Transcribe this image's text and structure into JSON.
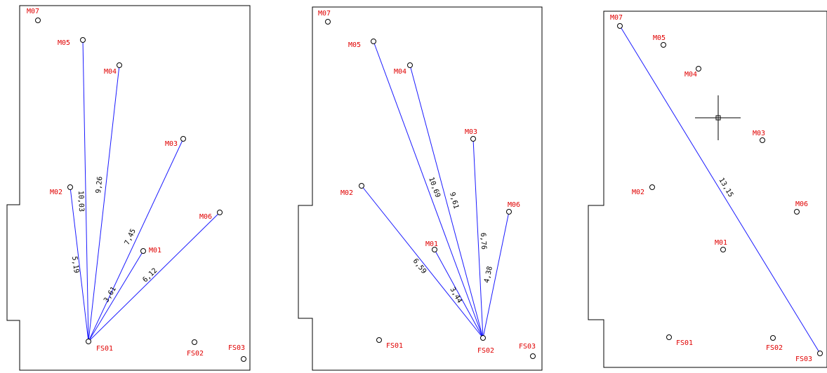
{
  "panels": [
    {
      "id": "panel-1",
      "points": [
        {
          "id": "p1-m07",
          "name": "M07"
        },
        {
          "id": "p1-m05",
          "name": "M05"
        },
        {
          "id": "p1-m04",
          "name": "M04"
        },
        {
          "id": "p1-m03",
          "name": "M03"
        },
        {
          "id": "p1-m02",
          "name": "M02"
        },
        {
          "id": "p1-m06",
          "name": "M06"
        },
        {
          "id": "p1-m01",
          "name": "M01"
        },
        {
          "id": "p1-fs01",
          "name": "FS01"
        },
        {
          "id": "p1-fs02",
          "name": "FS02"
        },
        {
          "id": "p1-fs03",
          "name": "FS03"
        }
      ],
      "measurements": [
        {
          "id": "p1-d-m05",
          "from": "FS01",
          "to": "M05",
          "distance": "10,03"
        },
        {
          "id": "p1-d-m04",
          "from": "FS01",
          "to": "M04",
          "distance": "9,26"
        },
        {
          "id": "p1-d-m03",
          "from": "FS01",
          "to": "M03",
          "distance": "7,45"
        },
        {
          "id": "p1-d-m02",
          "from": "FS01",
          "to": "M02",
          "distance": "5,19"
        },
        {
          "id": "p1-d-m06",
          "from": "FS01",
          "to": "M06",
          "distance": "6,12"
        },
        {
          "id": "p1-d-m01",
          "from": "FS01",
          "to": "M01",
          "distance": "3,61"
        }
      ]
    },
    {
      "id": "panel-2",
      "points": [
        {
          "id": "p2-m07",
          "name": "M07"
        },
        {
          "id": "p2-m05",
          "name": "M05"
        },
        {
          "id": "p2-m04",
          "name": "M04"
        },
        {
          "id": "p2-m03",
          "name": "M03"
        },
        {
          "id": "p2-m02",
          "name": "M02"
        },
        {
          "id": "p2-m06",
          "name": "M06"
        },
        {
          "id": "p2-m01",
          "name": "M01"
        },
        {
          "id": "p2-fs01",
          "name": "FS01"
        },
        {
          "id": "p2-fs02",
          "name": "FS02"
        },
        {
          "id": "p2-fs03",
          "name": "FS03"
        }
      ],
      "measurements": [
        {
          "id": "p2-d-m05",
          "from": "FS02",
          "to": "M05",
          "distance": "10,69"
        },
        {
          "id": "p2-d-m04",
          "from": "FS02",
          "to": "M04",
          "distance": "9,61"
        },
        {
          "id": "p2-d-m03",
          "from": "FS02",
          "to": "M03",
          "distance": "6,76"
        },
        {
          "id": "p2-d-m02",
          "from": "FS02",
          "to": "M02",
          "distance": "6,59"
        },
        {
          "id": "p2-d-m06",
          "from": "FS02",
          "to": "M06",
          "distance": "4,38"
        },
        {
          "id": "p2-d-m01",
          "from": "FS02",
          "to": "M01",
          "distance": "3,44"
        }
      ]
    },
    {
      "id": "panel-3",
      "points": [
        {
          "id": "p3-m07",
          "name": "M07"
        },
        {
          "id": "p3-m05",
          "name": "M05"
        },
        {
          "id": "p3-m04",
          "name": "M04"
        },
        {
          "id": "p3-m03",
          "name": "M03"
        },
        {
          "id": "p3-m02",
          "name": "M02"
        },
        {
          "id": "p3-m06",
          "name": "M06"
        },
        {
          "id": "p3-m01",
          "name": "M01"
        },
        {
          "id": "p3-fs01",
          "name": "FS01"
        },
        {
          "id": "p3-fs02",
          "name": "FS02"
        },
        {
          "id": "p3-fs03",
          "name": "FS03"
        }
      ],
      "measurements": [
        {
          "id": "p3-d-m07",
          "from": "FS03",
          "to": "M07",
          "distance": "13,15"
        }
      ]
    }
  ],
  "colors": {
    "measurement_line": "#1a1aff",
    "point_label": "#e00000",
    "outline": "#000000",
    "background": "#ffffff"
  }
}
